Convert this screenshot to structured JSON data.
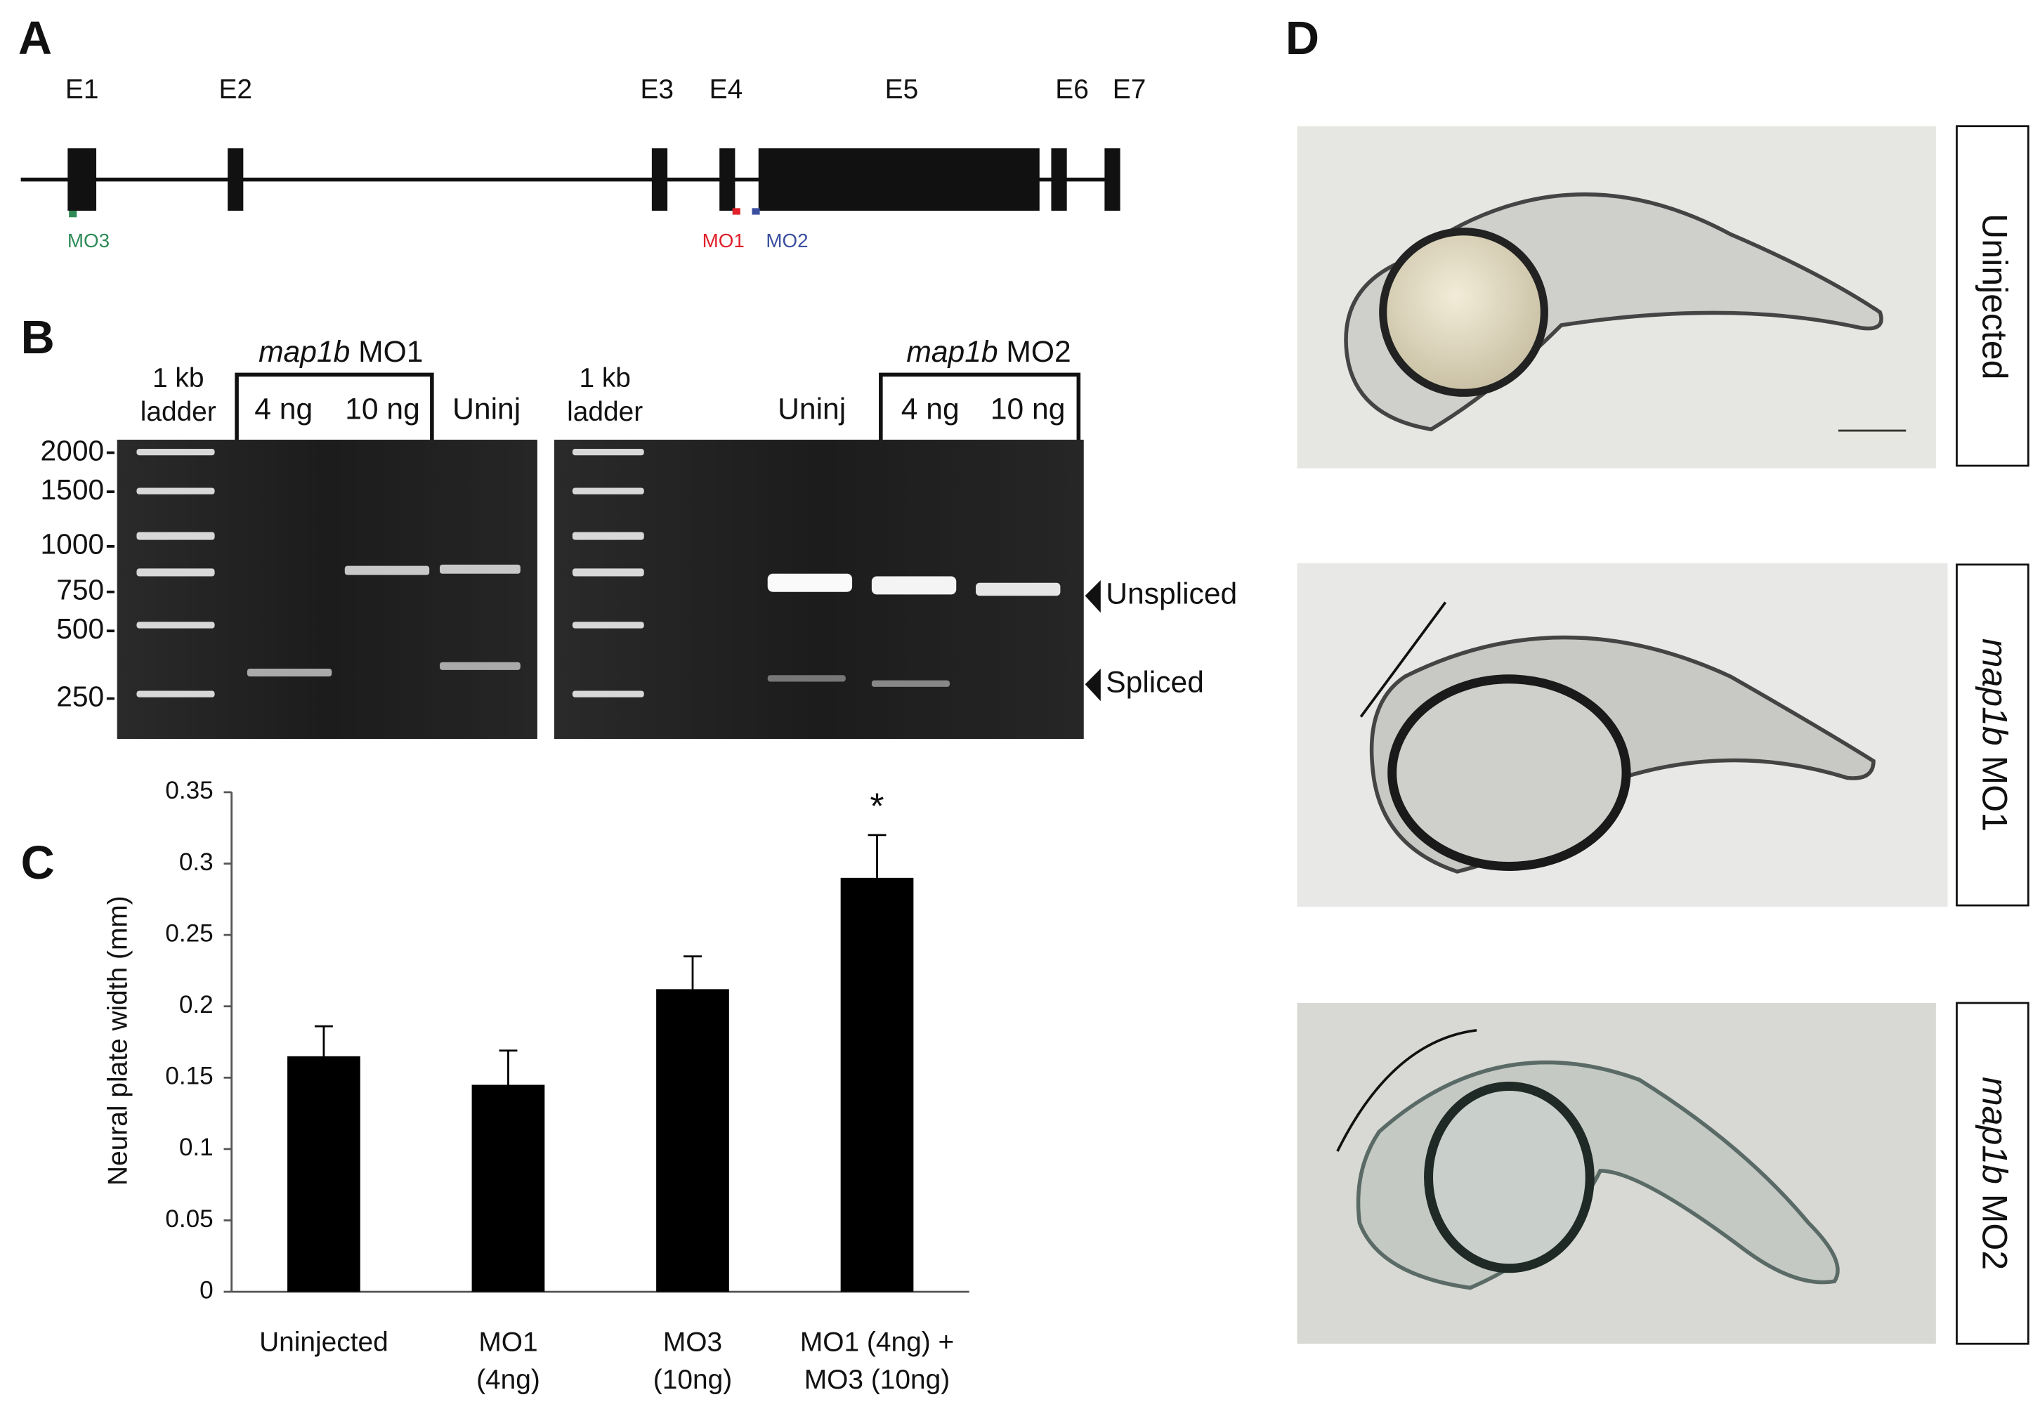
{
  "panels": {
    "A": {
      "letter": "A",
      "exons": [
        "E1",
        "E2",
        "E3",
        "E4",
        "E5",
        "E6",
        "E7"
      ],
      "morpholinos": [
        "MO3",
        "MO1",
        "MO2"
      ]
    },
    "B": {
      "letter": "B",
      "ladder_label": [
        "1 kb",
        "ladder"
      ],
      "left_gel": {
        "gene": "map1b",
        "morpholino": "MO1",
        "lanes": [
          "4 ng",
          "10 ng",
          "Uninj"
        ]
      },
      "right_gel": {
        "gene": "map1b",
        "morpholino": "MO2",
        "lanes": [
          "Uninj",
          "4 ng",
          "10 ng"
        ]
      },
      "sizes": [
        "2000",
        "1500",
        "1000",
        "750",
        "500",
        "250"
      ],
      "bands": [
        "Unspliced",
        "Spliced"
      ]
    },
    "C": {
      "letter": "C"
    },
    "D": {
      "letter": "D",
      "labels": [
        {
          "name": "Uninjected"
        },
        {
          "gene": "map1b",
          "name": "MO1"
        },
        {
          "gene": "map1b",
          "name": "MO2"
        }
      ]
    }
  },
  "chart_data": {
    "type": "bar",
    "categories": [
      [
        "Uninjected"
      ],
      [
        "MO1",
        "(4ng)"
      ],
      [
        "MO3",
        "(10ng)"
      ],
      [
        "MO1 (4ng) +",
        "MO3 (10ng)"
      ]
    ],
    "values": [
      0.165,
      0.145,
      0.212,
      0.29
    ],
    "errors": [
      0.021,
      0.024,
      0.023,
      0.03
    ],
    "annotations": [
      null,
      null,
      null,
      "*"
    ],
    "color": "#000000",
    "ylabel": "Neural plate width (mm)",
    "ylim": [
      0,
      0.35
    ],
    "yticks": [
      0,
      0.05,
      0.1,
      0.15,
      0.2,
      0.25,
      0.3,
      0.35
    ]
  }
}
